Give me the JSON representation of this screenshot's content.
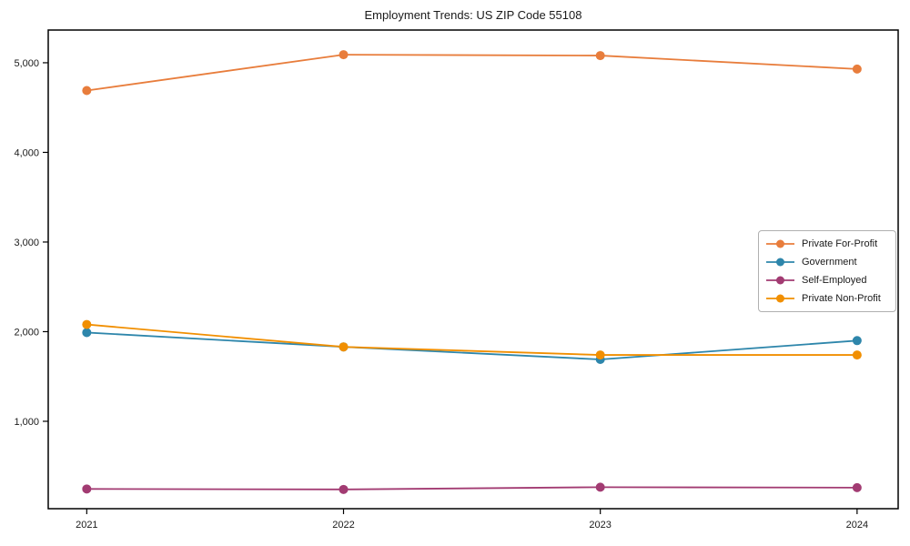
{
  "chart_data": {
    "type": "line",
    "title": "Employment Trends: US ZIP Code 55108",
    "xlabel": "",
    "ylabel": "",
    "x": [
      2021,
      2022,
      2023,
      2024
    ],
    "x_tick_labels": [
      "2021",
      "2022",
      "2023",
      "2024"
    ],
    "y_ticks": [
      1000,
      2000,
      3000,
      4000,
      5000
    ],
    "y_tick_labels": [
      "1,000",
      "2,000",
      "3,000",
      "4,000",
      "5,000"
    ],
    "xlim": [
      2020.85,
      2024.16
    ],
    "ylim": [
      25,
      5365
    ],
    "grid": false,
    "legend_position": "middle-right",
    "series": [
      {
        "name": "Private For-Profit",
        "color": "#E87D3C",
        "values": [
          4690,
          5090,
          5080,
          4930
        ]
      },
      {
        "name": "Government",
        "color": "#2E86AB",
        "values": [
          1990,
          1830,
          1690,
          1900
        ]
      },
      {
        "name": "Self-Employed",
        "color": "#A23B72",
        "values": [
          245,
          240,
          265,
          260
        ]
      },
      {
        "name": "Private Non-Profit",
        "color": "#F18F01",
        "values": [
          2080,
          1830,
          1740,
          1740
        ]
      }
    ],
    "style": {
      "axis_color": "#000000",
      "text_color": "#1a1a1a",
      "legend_border_color": "#b0b0b0",
      "marker_radius": 5,
      "line_width": 1.8
    }
  }
}
